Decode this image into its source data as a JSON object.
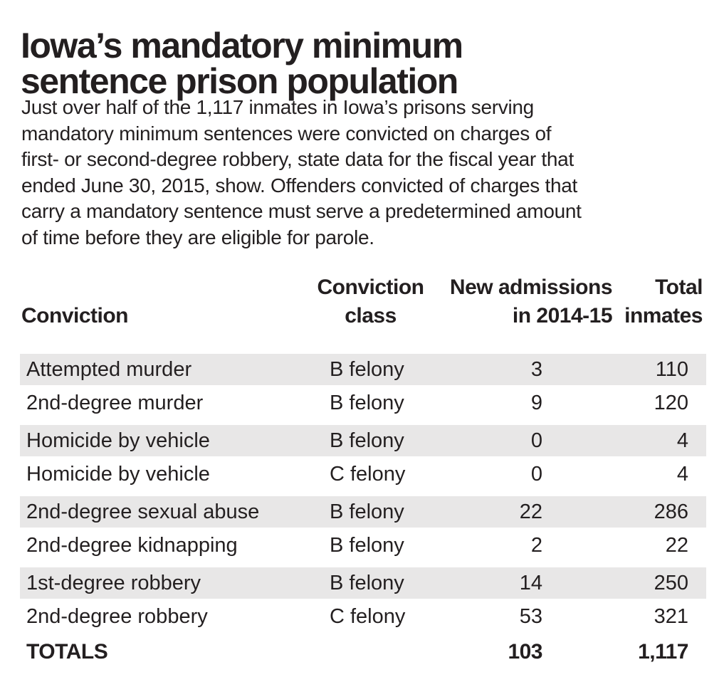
{
  "title": {
    "lines": [
      "Iowa’s mandatory minimum",
      "sentence prison population"
    ]
  },
  "intro": {
    "lines": [
      "Just over half of the 1,117 inmates in Iowa’s prisons serving",
      "mandatory minimum sentences were convicted on charges of",
      "first- or second-degree robbery, state data for the fiscal year that",
      "ended June 30, 2015, show. Offenders convicted of charges that",
      "carry a mandatory sentence must serve a predetermined amount",
      "of time before they are eligible for parole."
    ]
  },
  "table": {
    "headers": {
      "conviction": "Conviction",
      "conviction_class": [
        "Conviction",
        "class"
      ],
      "new_admissions": [
        "New admissions",
        "in 2014-15"
      ],
      "total_inmates": [
        "Total",
        "inmates"
      ]
    },
    "rows": [
      {
        "conviction": "Attempted murder",
        "class": "B felony",
        "admissions": "3",
        "inmates": "110"
      },
      {
        "conviction": "2nd-degree murder",
        "class": "B felony",
        "admissions": "9",
        "inmates": "120"
      },
      {
        "conviction": "Homicide by vehicle",
        "class": "B felony",
        "admissions": "0",
        "inmates": "4"
      },
      {
        "conviction": "Homicide by vehicle",
        "class": "C felony",
        "admissions": "0",
        "inmates": "4"
      },
      {
        "conviction": "2nd-degree sexual abuse",
        "class": "B felony",
        "admissions": "22",
        "inmates": "286"
      },
      {
        "conviction": "2nd-degree kidnapping",
        "class": "B felony",
        "admissions": "2",
        "inmates": "22"
      },
      {
        "conviction": "1st-degree robbery",
        "class": "B felony",
        "admissions": "14",
        "inmates": "250"
      },
      {
        "conviction": "2nd-degree robbery",
        "class": "C felony",
        "admissions": "53",
        "inmates": "321"
      }
    ],
    "totals": {
      "label": "TOTALS",
      "class": "",
      "admissions": "103",
      "inmates": "1,117"
    }
  },
  "colors": {
    "text": "#231f20",
    "row_shade": "#e8e7e7",
    "background": "#ffffff"
  },
  "chart_data": {
    "type": "table",
    "title": "Iowa’s mandatory minimum sentence prison population",
    "columns": [
      "Conviction",
      "Conviction class",
      "New admissions in 2014-15",
      "Total inmates"
    ],
    "rows": [
      [
        "Attempted murder",
        "B felony",
        3,
        110
      ],
      [
        "2nd-degree murder",
        "B felony",
        9,
        120
      ],
      [
        "Homicide by vehicle",
        "B felony",
        0,
        4
      ],
      [
        "Homicide by vehicle",
        "C felony",
        0,
        4
      ],
      [
        "2nd-degree sexual abuse",
        "B felony",
        22,
        286
      ],
      [
        "2nd-degree kidnapping",
        "B felony",
        2,
        22
      ],
      [
        "1st-degree robbery",
        "B felony",
        14,
        250
      ],
      [
        "2nd-degree robbery",
        "C felony",
        53,
        321
      ]
    ],
    "totals": [
      "TOTALS",
      "",
      103,
      1117
    ],
    "layout_hints": {
      "shaded_row_indices": [
        0,
        2,
        4,
        6
      ],
      "shade_color": "#e8e7e7",
      "numeric_columns_right_aligned": true
    }
  }
}
